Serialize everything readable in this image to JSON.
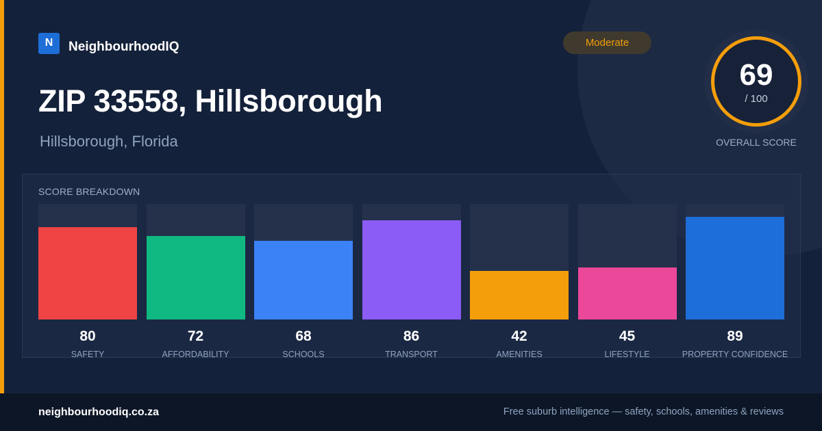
{
  "brand": {
    "logo_letter": "N",
    "name": "NeighbourhoodIQ"
  },
  "rating_badge": "Moderate",
  "title": "ZIP 33558, Hillsborough",
  "subtitle": "Hillsborough, Florida",
  "overall": {
    "value": 69,
    "max_label": "/ 100",
    "caption": "OVERALL SCORE",
    "fraction": 0.69
  },
  "breakdown": {
    "heading": "SCORE BREAKDOWN",
    "items": [
      {
        "label": "SAFETY",
        "value": 80,
        "color": "#ef4444"
      },
      {
        "label": "AFFORDABILITY",
        "value": 72,
        "color": "#10b981"
      },
      {
        "label": "SCHOOLS",
        "value": 68,
        "color": "#3b82f6"
      },
      {
        "label": "TRANSPORT",
        "value": 86,
        "color": "#8b5cf6"
      },
      {
        "label": "AMENITIES",
        "value": 42,
        "color": "#f59e0b"
      },
      {
        "label": "LIFESTYLE",
        "value": 45,
        "color": "#ec4899"
      },
      {
        "label": "PROPERTY CONFIDENCE",
        "value": 89,
        "color": "#1d6ed8"
      }
    ]
  },
  "footer": {
    "domain": "neighbourhoodiq.co.za",
    "tagline": "Free suburb intelligence — safety, schools, amenities & reviews"
  },
  "colors": {
    "background": "#14213a",
    "accent": "#f59e0b",
    "brand": "#1e6ed8",
    "footer": "#0c1626"
  },
  "chart_data": {
    "type": "bar",
    "title": "SCORE BREAKDOWN",
    "categories": [
      "SAFETY",
      "AFFORDABILITY",
      "SCHOOLS",
      "TRANSPORT",
      "AMENITIES",
      "LIFESTYLE",
      "PROPERTY CONFIDENCE"
    ],
    "values": [
      80,
      72,
      68,
      86,
      42,
      45,
      89
    ],
    "xlabel": "",
    "ylabel": "",
    "ylim": [
      0,
      100
    ],
    "grid": false
  }
}
